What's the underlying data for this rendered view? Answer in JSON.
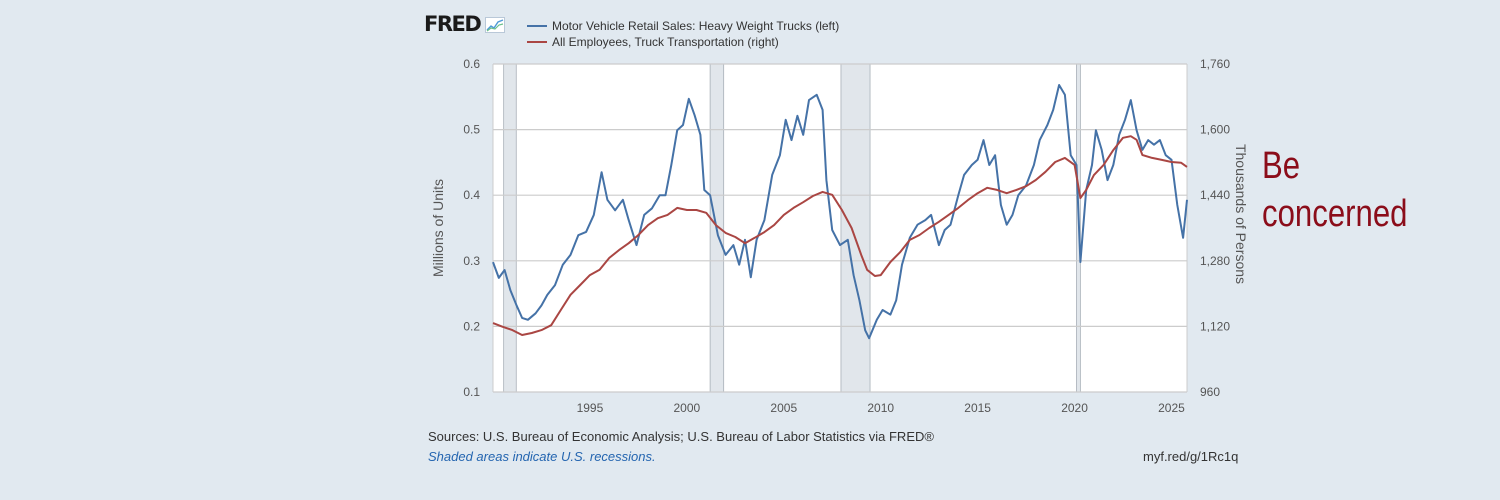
{
  "header": {
    "logo_text": "FRED",
    "logo_icon": "chart-line-icon"
  },
  "footer": {
    "source": "Sources: U.S. Bureau of Economic Analysis; U.S. Bureau of Labor Statistics via FRED®",
    "note": "Shaded areas indicate U.S. recessions.",
    "shortlink": "myf.red/g/1Rc1q"
  },
  "annotation": {
    "line1": "Be",
    "line2": "concerned",
    "color": "#8b0d1a"
  },
  "chart_data": {
    "type": "line",
    "title": "",
    "xlabel": "",
    "ylabel": "Millions of Units",
    "ylabel_right": "Thousands of Persons",
    "xlim": [
      1990.0,
      2025.8
    ],
    "ylim": [
      0.1,
      0.6
    ],
    "ylim_right": [
      960,
      1760
    ],
    "x_ticks": [
      1995,
      2000,
      2005,
      2010,
      2015,
      2020,
      2025
    ],
    "x_tick_labels": [
      "1995",
      "2000",
      "2005",
      "2010",
      "2015",
      "2020",
      "2025"
    ],
    "y_ticks": [
      0.1,
      0.2,
      0.3,
      0.4,
      0.5,
      0.6
    ],
    "y_tick_labels": [
      "0.1",
      "0.2",
      "0.3",
      "0.4",
      "0.5",
      "0.6"
    ],
    "y_ticks_right": [
      960,
      1120,
      1280,
      1440,
      1600,
      1760
    ],
    "y_tick_labels_right": [
      "960",
      "1,120",
      "1,280",
      "1,440",
      "1,600",
      "1,760"
    ],
    "grid": true,
    "legend_position": "top-left",
    "recessions": [
      [
        1990.55,
        1991.2
      ],
      [
        2001.2,
        2001.9
      ],
      [
        2007.95,
        2009.45
      ],
      [
        2020.1,
        2020.3
      ]
    ],
    "series": [
      {
        "name": "Motor Vehicle Retail Sales: Heavy Weight Trucks (left)",
        "axis": "left",
        "color": "#4572a7",
        "x": [
          1990.0,
          1990.3,
          1990.6,
          1990.9,
          1991.2,
          1991.5,
          1991.8,
          1992.2,
          1992.5,
          1992.8,
          1993.2,
          1993.6,
          1994.0,
          1994.4,
          1994.8,
          1995.2,
          1995.6,
          1995.9,
          1996.3,
          1996.7,
          1997.0,
          1997.4,
          1997.8,
          1998.2,
          1998.6,
          1998.9,
          1999.2,
          1999.5,
          1999.8,
          2000.1,
          2000.4,
          2000.7,
          2000.9,
          2001.2,
          2001.6,
          2002.0,
          2002.4,
          2002.7,
          2003.0,
          2003.3,
          2003.6,
          2004.0,
          2004.4,
          2004.8,
          2005.1,
          2005.4,
          2005.7,
          2006.0,
          2006.3,
          2006.7,
          2007.0,
          2007.2,
          2007.5,
          2007.9,
          2008.3,
          2008.6,
          2008.9,
          2009.2,
          2009.4,
          2009.8,
          2010.1,
          2010.5,
          2010.8,
          2011.1,
          2011.5,
          2011.9,
          2012.3,
          2012.6,
          2013.0,
          2013.3,
          2013.6,
          2014.0,
          2014.3,
          2014.7,
          2015.0,
          2015.3,
          2015.6,
          2015.9,
          2016.2,
          2016.5,
          2016.8,
          2017.1,
          2017.5,
          2017.9,
          2018.2,
          2018.6,
          2018.9,
          2019.2,
          2019.5,
          2019.8,
          2020.1,
          2020.3,
          2020.6,
          2020.9,
          2021.1,
          2021.4,
          2021.7,
          2022.0,
          2022.3,
          2022.6,
          2022.9,
          2023.2,
          2023.5,
          2023.8,
          2024.1,
          2024.4,
          2024.7,
          2025.0,
          2025.3,
          2025.6,
          2025.8
        ],
        "values": [
          0.298,
          0.274,
          0.286,
          0.255,
          0.233,
          0.213,
          0.21,
          0.22,
          0.232,
          0.248,
          0.263,
          0.294,
          0.309,
          0.339,
          0.344,
          0.37,
          0.435,
          0.393,
          0.377,
          0.393,
          0.362,
          0.324,
          0.37,
          0.38,
          0.4,
          0.4,
          0.446,
          0.499,
          0.507,
          0.547,
          0.522,
          0.492,
          0.408,
          0.4,
          0.339,
          0.309,
          0.324,
          0.294,
          0.332,
          0.275,
          0.332,
          0.362,
          0.431,
          0.461,
          0.515,
          0.484,
          0.521,
          0.492,
          0.545,
          0.553,
          0.53,
          0.423,
          0.347,
          0.324,
          0.332,
          0.278,
          0.24,
          0.194,
          0.182,
          0.21,
          0.225,
          0.218,
          0.24,
          0.294,
          0.335,
          0.355,
          0.362,
          0.37,
          0.324,
          0.347,
          0.355,
          0.4,
          0.431,
          0.446,
          0.454,
          0.484,
          0.446,
          0.461,
          0.385,
          0.355,
          0.37,
          0.4,
          0.415,
          0.446,
          0.484,
          0.507,
          0.53,
          0.568,
          0.553,
          0.461,
          0.446,
          0.298,
          0.408,
          0.446,
          0.499,
          0.469,
          0.423,
          0.446,
          0.492,
          0.515,
          0.545,
          0.499,
          0.469,
          0.484,
          0.477,
          0.484,
          0.461,
          0.454,
          0.385,
          0.335,
          0.393
        ]
      },
      {
        "name": "All Employees, Truck Transportation (right)",
        "axis": "right",
        "color": "#aa4643",
        "x": [
          1990.0,
          1990.5,
          1991.0,
          1991.5,
          1992.0,
          1992.5,
          1993.0,
          1993.5,
          1994.0,
          1994.5,
          1995.0,
          1995.5,
          1996.0,
          1996.5,
          1997.0,
          1997.5,
          1998.0,
          1998.5,
          1999.0,
          1999.5,
          2000.0,
          2000.5,
          2001.0,
          2001.5,
          2002.0,
          2002.5,
          2003.0,
          2003.5,
          2004.0,
          2004.5,
          2005.0,
          2005.5,
          2006.0,
          2006.5,
          2007.0,
          2007.5,
          2008.0,
          2008.5,
          2009.0,
          2009.3,
          2009.7,
          2010.0,
          2010.5,
          2011.0,
          2011.5,
          2012.0,
          2012.5,
          2013.0,
          2013.5,
          2014.0,
          2014.5,
          2015.0,
          2015.5,
          2016.0,
          2016.5,
          2017.0,
          2017.5,
          2018.0,
          2018.5,
          2019.0,
          2019.5,
          2020.0,
          2020.3,
          2020.6,
          2021.0,
          2021.5,
          2022.0,
          2022.5,
          2022.9,
          2023.2,
          2023.5,
          2024.0,
          2024.5,
          2025.0,
          2025.5,
          2025.8
        ],
        "values": [
          1128,
          1119,
          1111,
          1099,
          1104,
          1111,
          1123,
          1160,
          1197,
          1221,
          1245,
          1258,
          1287,
          1306,
          1323,
          1343,
          1367,
          1384,
          1392,
          1409,
          1404,
          1404,
          1397,
          1367,
          1348,
          1338,
          1323,
          1336,
          1350,
          1367,
          1392,
          1409,
          1423,
          1438,
          1448,
          1441,
          1404,
          1360,
          1294,
          1258,
          1243,
          1245,
          1277,
          1301,
          1331,
          1343,
          1360,
          1375,
          1392,
          1409,
          1428,
          1445,
          1458,
          1453,
          1445,
          1453,
          1462,
          1477,
          1497,
          1521,
          1531,
          1514,
          1433,
          1453,
          1489,
          1514,
          1550,
          1580,
          1584,
          1575,
          1538,
          1531,
          1526,
          1521,
          1519,
          1509
        ]
      }
    ]
  }
}
